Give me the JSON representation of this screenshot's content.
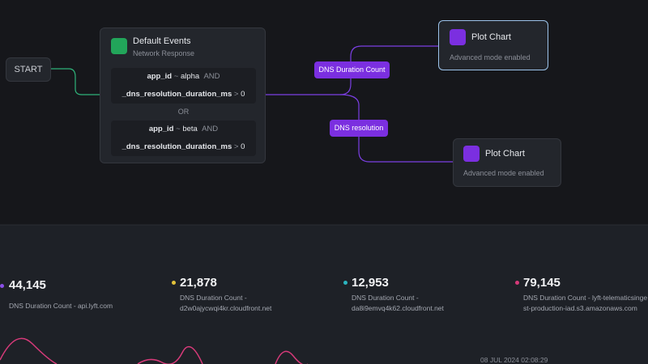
{
  "flow": {
    "start": "START",
    "source": {
      "title": "Default Events",
      "subtitle": "Network Response",
      "filters": [
        {
          "field": "app_id",
          "op": "~",
          "value": "alpha",
          "join": "AND",
          "field2": "_dns_resolution_duration_ms",
          "op2": ">",
          "value2": "0"
        },
        {
          "field": "app_id",
          "op": "~",
          "value": "beta",
          "join": "AND",
          "field2": "_dns_resolution_duration_ms",
          "op2": ">",
          "value2": "0"
        }
      ],
      "separator": "OR"
    },
    "edges": [
      "DNS Duration Count",
      "DNS resolution"
    ],
    "targets": [
      {
        "title": "Plot Chart",
        "subtitle": "Advanced mode enabled"
      },
      {
        "title": "Plot Chart",
        "subtitle": "Advanced mode enabled"
      }
    ]
  },
  "stats": [
    {
      "value": "44,145",
      "label": "DNS Duration Count - api.lyft.com"
    },
    {
      "value": "21,878",
      "label": "DNS Duration Count - d2w0ajycwqi4kr.cloudfront.net"
    },
    {
      "value": "12,953",
      "label": "DNS Duration Count - da8i9emvq4k62.cloudfront.net"
    },
    {
      "value": "79,145",
      "label": "DNS Duration Count - lyft-telematicsingest-production-iad.s3.amazonaws.com"
    }
  ],
  "timestamp": "08 JUL 2024 02:08:29"
}
